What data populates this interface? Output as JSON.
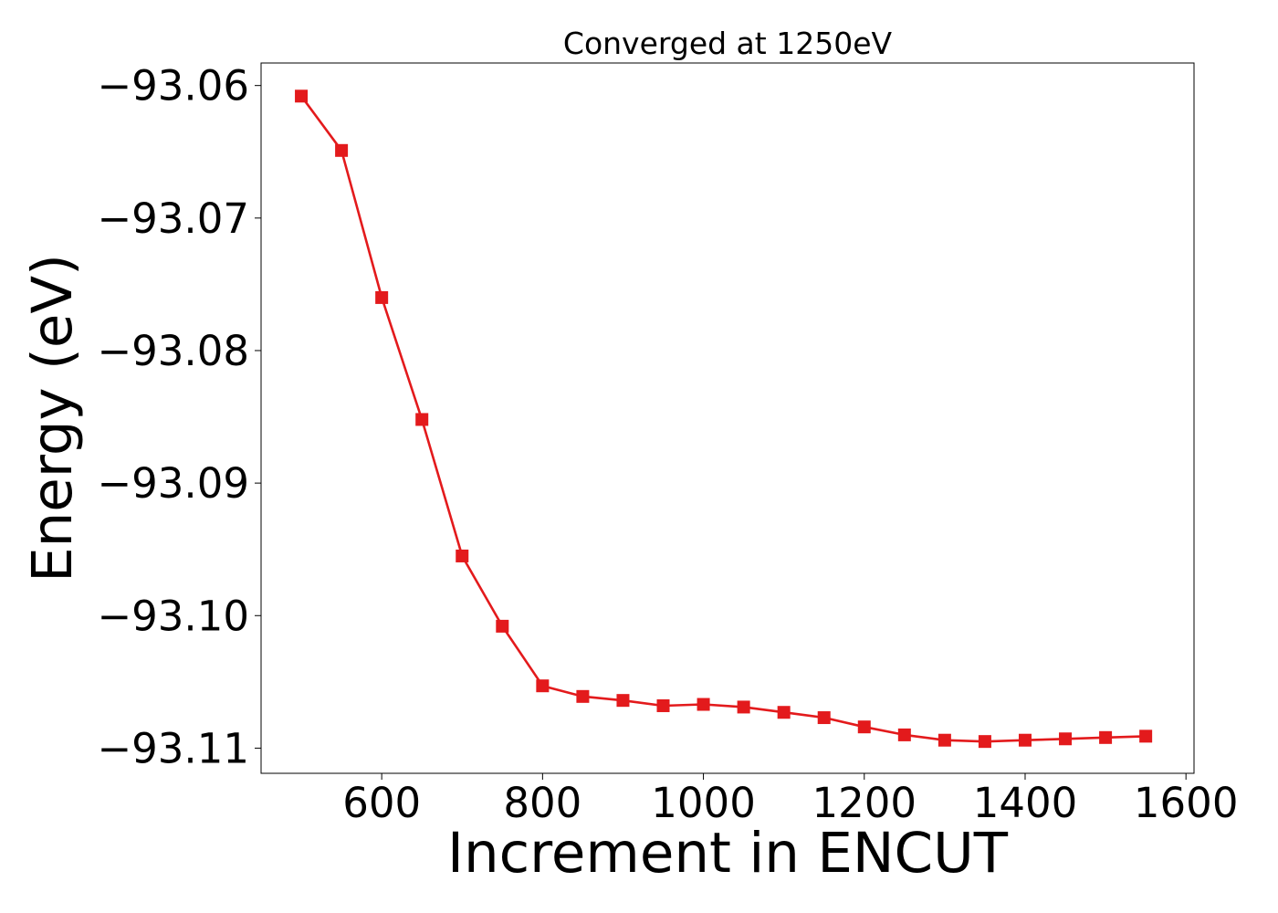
{
  "chart_data": {
    "type": "line",
    "title": "Converged at 1250eV",
    "xlabel": "Increment in ENCUT",
    "ylabel": "Energy (eV)",
    "xlim": [
      450,
      1610
    ],
    "ylim": [
      -93.1119,
      -93.0583
    ],
    "x_ticks": [
      600,
      800,
      1000,
      1200,
      1400,
      1600
    ],
    "x_tick_labels": [
      "600",
      "800",
      "1000",
      "1200",
      "1400",
      "1600"
    ],
    "y_ticks": [
      -93.06,
      -93.07,
      -93.08,
      -93.09,
      -93.1,
      -93.11
    ],
    "y_tick_labels": [
      "−93.06",
      "−93.07",
      "−93.08",
      "−93.09",
      "−93.10",
      "−93.11"
    ],
    "grid": false,
    "legend": "none",
    "series": [
      {
        "color": "#e31a1c",
        "marker": "square",
        "x": [
          500,
          550,
          600,
          650,
          700,
          750,
          800,
          850,
          900,
          950,
          1000,
          1050,
          1100,
          1150,
          1200,
          1250,
          1300,
          1350,
          1400,
          1450,
          1500,
          1550
        ],
        "y": [
          -93.0608,
          -93.0649,
          -93.076,
          -93.0852,
          -93.0955,
          -93.1008,
          -93.1053,
          -93.1061,
          -93.1064,
          -93.1068,
          -93.1067,
          -93.1069,
          -93.1073,
          -93.1077,
          -93.1084,
          -93.109,
          -93.1094,
          -93.1095,
          -93.1094,
          -93.1093,
          -93.1092,
          -93.1091
        ]
      }
    ]
  }
}
